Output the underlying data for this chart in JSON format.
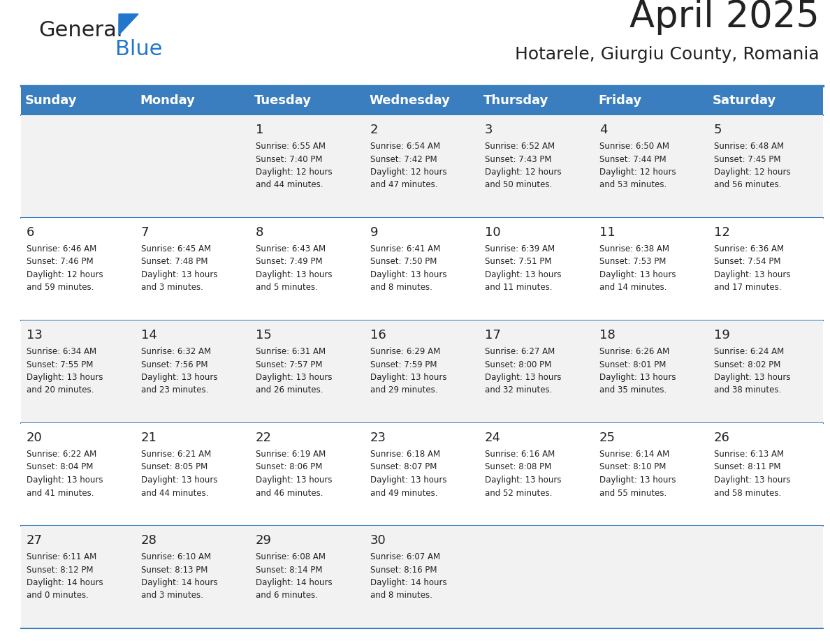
{
  "title": "April 2025",
  "subtitle": "Hotarele, Giurgiu County, Romania",
  "days_of_week": [
    "Sunday",
    "Monday",
    "Tuesday",
    "Wednesday",
    "Thursday",
    "Friday",
    "Saturday"
  ],
  "header_bg": "#3a7ebf",
  "header_text_color": "#ffffff",
  "row_bg_even": "#f2f2f2",
  "row_bg_odd": "#ffffff",
  "cell_text_color": "#222222",
  "grid_line_color": "#3a7ebf",
  "title_color": "#222222",
  "subtitle_color": "#222222",
  "logo_text1": "General",
  "logo_text2": "Blue",
  "logo_color1": "#222222",
  "logo_color2": "#2277cc",
  "logo_triangle_color": "#2277cc",
  "calendar_data": [
    [
      {
        "day": "",
        "info": ""
      },
      {
        "day": "",
        "info": ""
      },
      {
        "day": "1",
        "info": "Sunrise: 6:55 AM\nSunset: 7:40 PM\nDaylight: 12 hours\nand 44 minutes."
      },
      {
        "day": "2",
        "info": "Sunrise: 6:54 AM\nSunset: 7:42 PM\nDaylight: 12 hours\nand 47 minutes."
      },
      {
        "day": "3",
        "info": "Sunrise: 6:52 AM\nSunset: 7:43 PM\nDaylight: 12 hours\nand 50 minutes."
      },
      {
        "day": "4",
        "info": "Sunrise: 6:50 AM\nSunset: 7:44 PM\nDaylight: 12 hours\nand 53 minutes."
      },
      {
        "day": "5",
        "info": "Sunrise: 6:48 AM\nSunset: 7:45 PM\nDaylight: 12 hours\nand 56 minutes."
      }
    ],
    [
      {
        "day": "6",
        "info": "Sunrise: 6:46 AM\nSunset: 7:46 PM\nDaylight: 12 hours\nand 59 minutes."
      },
      {
        "day": "7",
        "info": "Sunrise: 6:45 AM\nSunset: 7:48 PM\nDaylight: 13 hours\nand 3 minutes."
      },
      {
        "day": "8",
        "info": "Sunrise: 6:43 AM\nSunset: 7:49 PM\nDaylight: 13 hours\nand 5 minutes."
      },
      {
        "day": "9",
        "info": "Sunrise: 6:41 AM\nSunset: 7:50 PM\nDaylight: 13 hours\nand 8 minutes."
      },
      {
        "day": "10",
        "info": "Sunrise: 6:39 AM\nSunset: 7:51 PM\nDaylight: 13 hours\nand 11 minutes."
      },
      {
        "day": "11",
        "info": "Sunrise: 6:38 AM\nSunset: 7:53 PM\nDaylight: 13 hours\nand 14 minutes."
      },
      {
        "day": "12",
        "info": "Sunrise: 6:36 AM\nSunset: 7:54 PM\nDaylight: 13 hours\nand 17 minutes."
      }
    ],
    [
      {
        "day": "13",
        "info": "Sunrise: 6:34 AM\nSunset: 7:55 PM\nDaylight: 13 hours\nand 20 minutes."
      },
      {
        "day": "14",
        "info": "Sunrise: 6:32 AM\nSunset: 7:56 PM\nDaylight: 13 hours\nand 23 minutes."
      },
      {
        "day": "15",
        "info": "Sunrise: 6:31 AM\nSunset: 7:57 PM\nDaylight: 13 hours\nand 26 minutes."
      },
      {
        "day": "16",
        "info": "Sunrise: 6:29 AM\nSunset: 7:59 PM\nDaylight: 13 hours\nand 29 minutes."
      },
      {
        "day": "17",
        "info": "Sunrise: 6:27 AM\nSunset: 8:00 PM\nDaylight: 13 hours\nand 32 minutes."
      },
      {
        "day": "18",
        "info": "Sunrise: 6:26 AM\nSunset: 8:01 PM\nDaylight: 13 hours\nand 35 minutes."
      },
      {
        "day": "19",
        "info": "Sunrise: 6:24 AM\nSunset: 8:02 PM\nDaylight: 13 hours\nand 38 minutes."
      }
    ],
    [
      {
        "day": "20",
        "info": "Sunrise: 6:22 AM\nSunset: 8:04 PM\nDaylight: 13 hours\nand 41 minutes."
      },
      {
        "day": "21",
        "info": "Sunrise: 6:21 AM\nSunset: 8:05 PM\nDaylight: 13 hours\nand 44 minutes."
      },
      {
        "day": "22",
        "info": "Sunrise: 6:19 AM\nSunset: 8:06 PM\nDaylight: 13 hours\nand 46 minutes."
      },
      {
        "day": "23",
        "info": "Sunrise: 6:18 AM\nSunset: 8:07 PM\nDaylight: 13 hours\nand 49 minutes."
      },
      {
        "day": "24",
        "info": "Sunrise: 6:16 AM\nSunset: 8:08 PM\nDaylight: 13 hours\nand 52 minutes."
      },
      {
        "day": "25",
        "info": "Sunrise: 6:14 AM\nSunset: 8:10 PM\nDaylight: 13 hours\nand 55 minutes."
      },
      {
        "day": "26",
        "info": "Sunrise: 6:13 AM\nSunset: 8:11 PM\nDaylight: 13 hours\nand 58 minutes."
      }
    ],
    [
      {
        "day": "27",
        "info": "Sunrise: 6:11 AM\nSunset: 8:12 PM\nDaylight: 14 hours\nand 0 minutes."
      },
      {
        "day": "28",
        "info": "Sunrise: 6:10 AM\nSunset: 8:13 PM\nDaylight: 14 hours\nand 3 minutes."
      },
      {
        "day": "29",
        "info": "Sunrise: 6:08 AM\nSunset: 8:14 PM\nDaylight: 14 hours\nand 6 minutes."
      },
      {
        "day": "30",
        "info": "Sunrise: 6:07 AM\nSunset: 8:16 PM\nDaylight: 14 hours\nand 8 minutes."
      },
      {
        "day": "",
        "info": ""
      },
      {
        "day": "",
        "info": ""
      },
      {
        "day": "",
        "info": ""
      }
    ]
  ]
}
